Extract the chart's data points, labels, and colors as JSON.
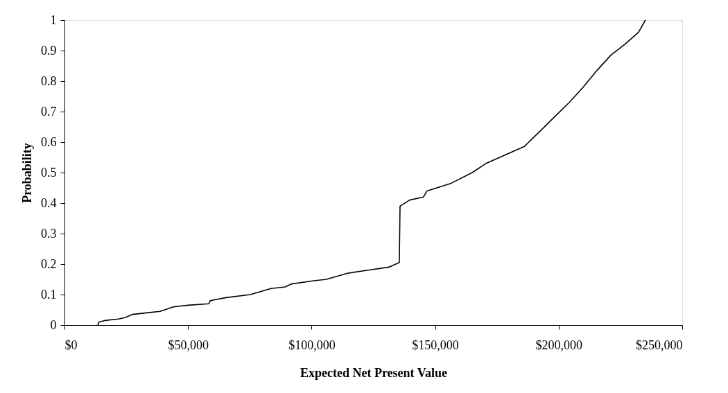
{
  "chart_data": {
    "type": "line",
    "xlabel": "Expected Net Present Value",
    "ylabel": "Probability",
    "x": [
      13500,
      14000,
      16300,
      21900,
      24700,
      27500,
      33100,
      38700,
      44300,
      50000,
      58400,
      59000,
      65400,
      75200,
      83600,
      89200,
      92000,
      100400,
      106000,
      114500,
      122900,
      131300,
      135500,
      135800,
      139700,
      145300,
      146700,
      156500,
      165000,
      170600,
      179000,
      186000,
      193000,
      198600,
      204300,
      209900,
      215500,
      221100,
      226700,
      232300,
      235100
    ],
    "series": [
      {
        "color": "#000000",
        "values": [
          0,
          0.01,
          0.015,
          0.02,
          0.025,
          0.035,
          0.04,
          0.045,
          0.06,
          0.065,
          0.07,
          0.08,
          0.09,
          0.1,
          0.12,
          0.125,
          0.135,
          0.145,
          0.15,
          0.17,
          0.18,
          0.19,
          0.205,
          0.39,
          0.41,
          0.42,
          0.44,
          0.465,
          0.5,
          0.53,
          0.56,
          0.585,
          0.64,
          0.685,
          0.73,
          0.78,
          0.835,
          0.885,
          0.92,
          0.96,
          1.0
        ]
      }
    ],
    "xlim": [
      0,
      250000
    ],
    "xticks": [
      {
        "value": 0,
        "label": "$0"
      },
      {
        "value": 50000,
        "label": "$50,000"
      },
      {
        "value": 100000,
        "label": "$100,000"
      },
      {
        "value": 150000,
        "label": "$150,000"
      },
      {
        "value": 200000,
        "label": "$200,000"
      },
      {
        "value": 250000,
        "label": "$250,000"
      }
    ],
    "ylim": [
      0,
      1
    ],
    "yticks": [
      0,
      0.1,
      0.2,
      0.3,
      0.4,
      0.5,
      0.6,
      0.7,
      0.8,
      0.9,
      1
    ],
    "grid": false,
    "legend": false,
    "marker": "none",
    "line_style": "solid"
  }
}
